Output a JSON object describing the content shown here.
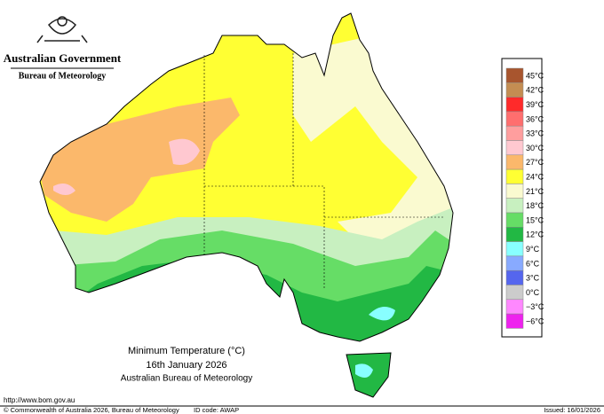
{
  "header": {
    "government": "Australian Government",
    "agency": "Bureau of Meteorology"
  },
  "map": {
    "title": "Minimum Temperature (°C)",
    "date": "16th January 2026",
    "source": "Australian Bureau of Meteorology"
  },
  "legend": {
    "items": [
      {
        "label": "45°C",
        "color": "#a8552e"
      },
      {
        "label": "42°C",
        "color": "#c48d52"
      },
      {
        "label": "39°C",
        "color": "#ff2a2a"
      },
      {
        "label": "36°C",
        "color": "#ff6e6e"
      },
      {
        "label": "33°C",
        "color": "#ff9e9e"
      },
      {
        "label": "30°C",
        "color": "#ffc8d0"
      },
      {
        "label": "27°C",
        "color": "#fbb86b"
      },
      {
        "label": "24°C",
        "color": "#ffff33"
      },
      {
        "label": "21°C",
        "color": "#fafad0"
      },
      {
        "label": "18°C",
        "color": "#c8f0c0"
      },
      {
        "label": "15°C",
        "color": "#66dd66"
      },
      {
        "label": "12°C",
        "color": "#22b844"
      },
      {
        "label": "9°C",
        "color": "#88ffff"
      },
      {
        "label": "6°C",
        "color": "#88aaff"
      },
      {
        "label": "3°C",
        "color": "#5566ee"
      },
      {
        "label": "0°C",
        "color": "#cccccc"
      },
      {
        "label": "−3°C",
        "color": "#ff88ff"
      },
      {
        "label": "−6°C",
        "color": "#ee22ee"
      }
    ]
  },
  "footer": {
    "url": "http://www.bom.gov.au",
    "copyright": "© Commonwealth of Australia 2026, Bureau of Meteorology",
    "id_code": "ID code: AWAP",
    "issued": "Issued: 16/01/2026"
  }
}
